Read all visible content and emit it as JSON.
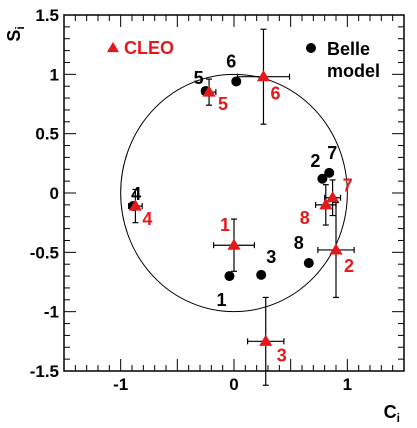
{
  "chart_data": {
    "type": "scatter",
    "xlabel": "C",
    "xlabel_sub": "i",
    "ylabel": "S",
    "ylabel_sub": "i",
    "xlim": [
      -1.5,
      1.5
    ],
    "ylim": [
      -1.5,
      1.5
    ],
    "x_ticks": [
      -1,
      0,
      1
    ],
    "x_tick_labels": [
      "-1",
      "0",
      "1"
    ],
    "y_ticks": [
      -1.5,
      -1,
      -0.5,
      0,
      0.5,
      1,
      1.5
    ],
    "y_tick_labels": [
      "-1.5",
      "-1",
      "-0.5",
      "0",
      "0.5",
      "1",
      "1.5"
    ],
    "grid": false,
    "unit_circle": true,
    "legend": [
      {
        "name": "CLEO",
        "marker": "triangle",
        "color": "#e31a1c"
      },
      {
        "name": "Belle model",
        "lines": [
          "Belle",
          "model"
        ],
        "marker": "circle",
        "color": "#000000"
      }
    ],
    "series": [
      {
        "name": "CLEO",
        "marker": "triangle",
        "color": "#e31a1c",
        "points": [
          {
            "label": "1",
            "x": 0.0,
            "y": -0.44,
            "xerr": 0.18,
            "yerr": 0.22
          },
          {
            "label": "2",
            "x": 0.9,
            "y": -0.48,
            "xerr": 0.16,
            "yerr": 0.4
          },
          {
            "label": "3",
            "x": 0.28,
            "y": -1.25,
            "xerr": 0.16,
            "yerr": 0.37
          },
          {
            "label": "4",
            "x": -0.87,
            "y": -0.11,
            "xerr": 0.06,
            "yerr": 0.14
          },
          {
            "label": "5",
            "x": -0.22,
            "y": 0.85,
            "xerr": 0.06,
            "yerr": 0.11
          },
          {
            "label": "6",
            "x": 0.26,
            "y": 0.98,
            "xerr": 0.23,
            "yerr": 0.4
          },
          {
            "label": "7",
            "x": 0.87,
            "y": -0.04,
            "xerr": 0.07,
            "yerr": 0.15
          },
          {
            "label": "8",
            "x": 0.81,
            "y": -0.1,
            "xerr": 0.09,
            "yerr": 0.17
          }
        ]
      },
      {
        "name": "Belle model",
        "marker": "circle",
        "color": "#000000",
        "points": [
          {
            "label": "1",
            "x": -0.04,
            "y": -0.7
          },
          {
            "label": "2",
            "x": 0.78,
            "y": 0.12
          },
          {
            "label": "3",
            "x": 0.24,
            "y": -0.69
          },
          {
            "label": "4",
            "x": -0.89,
            "y": -0.11
          },
          {
            "label": "5",
            "x": -0.25,
            "y": 0.86
          },
          {
            "label": "6",
            "x": 0.02,
            "y": 0.94
          },
          {
            "label": "7",
            "x": 0.84,
            "y": 0.17
          },
          {
            "label": "8",
            "x": 0.66,
            "y": -0.59
          }
        ]
      }
    ]
  }
}
